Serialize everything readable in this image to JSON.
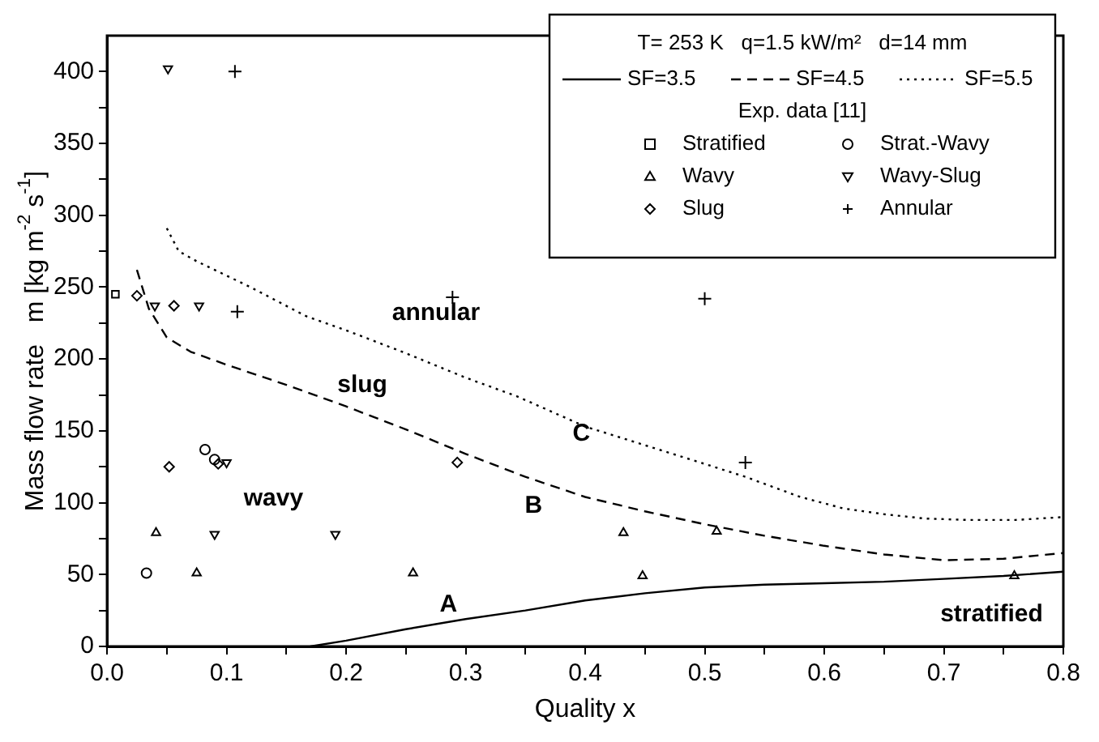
{
  "chart_data": {
    "type": "scatter",
    "xlabel": "Quality x",
    "ylabel": "Mass flow rate   m [kg m$^{-2}$ s$^{-1}$]",
    "legend_title": "T= 253 K   q=1.5 kW/m²   d=14 mm",
    "legend": "top right",
    "xlim": [
      0,
      0.8
    ],
    "ylim": [
      0,
      425
    ],
    "xticks": [
      {
        "value": 0,
        "label": "0.0"
      },
      {
        "value": 0.05,
        "label": null
      },
      {
        "value": 0.1,
        "label": "0.1"
      },
      {
        "value": 0.15,
        "label": null
      },
      {
        "value": 0.2,
        "label": "0.2"
      },
      {
        "value": 0.25,
        "label": null
      },
      {
        "value": 0.3,
        "label": "0.3"
      },
      {
        "value": 0.35,
        "label": null
      },
      {
        "value": 0.4,
        "label": "0.4"
      },
      {
        "value": 0.45,
        "label": null
      },
      {
        "value": 0.5,
        "label": "0.5"
      },
      {
        "value": 0.55,
        "label": null
      },
      {
        "value": 0.6,
        "label": "0.6"
      },
      {
        "value": 0.65,
        "label": null
      },
      {
        "value": 0.7,
        "label": "0.7"
      },
      {
        "value": 0.75,
        "label": null
      },
      {
        "value": 0.8,
        "label": "0.8"
      }
    ],
    "yticks": [
      0,
      {
        "value": 25,
        "label": null
      },
      50,
      {
        "value": 75,
        "label": null
      },
      100,
      {
        "value": 125,
        "label": null
      },
      150,
      {
        "value": 175,
        "label": null
      },
      200,
      {
        "value": 225,
        "label": null
      },
      250,
      {
        "value": 275,
        "label": null
      },
      300,
      {
        "value": 325,
        "label": null
      },
      350,
      {
        "value": 375,
        "label": null
      },
      400
    ],
    "annotations": [
      "Exp. data [11]",
      "annular",
      "slug",
      "wavy",
      "C",
      "B",
      "A",
      "stratified"
    ],
    "series": [
      {
        "name": "SF=3.5",
        "type": "line",
        "line_style": "solid",
        "color": "#000000",
        "x": [
          0.17,
          0.2,
          0.25,
          0.3,
          0.35,
          0.4,
          0.45,
          0.5,
          0.55,
          0.6,
          0.65,
          0.7,
          0.75,
          0.8
        ],
        "values": [
          0,
          4,
          12,
          19,
          25,
          32,
          37,
          41,
          43,
          44,
          45,
          47,
          49,
          52
        ]
      },
      {
        "name": "SF=4.5",
        "type": "line",
        "line_style": "dashed",
        "color": "#000000",
        "x": [
          0.025,
          0.035,
          0.05,
          0.07,
          0.1,
          0.15,
          0.2,
          0.25,
          0.3,
          0.35,
          0.4,
          0.45,
          0.5,
          0.55,
          0.6,
          0.65,
          0.7,
          0.75,
          0.8
        ],
        "values": [
          262,
          235,
          215,
          205,
          196,
          182,
          167,
          151,
          134,
          118,
          104,
          94,
          85,
          77,
          70,
          64,
          60,
          61,
          65
        ]
      },
      {
        "name": "SF=5.5",
        "type": "line",
        "line_style": "dotted",
        "color": "#000000",
        "x": [
          0.05,
          0.06,
          0.075,
          0.09,
          0.12,
          0.166,
          0.2,
          0.25,
          0.3,
          0.343,
          0.4,
          0.45,
          0.5,
          0.534,
          0.58,
          0.616,
          0.65,
          0.684,
          0.72,
          0.76,
          0.8
        ],
        "values": [
          291,
          275,
          268,
          262,
          250,
          230,
          220,
          204,
          187,
          174,
          153,
          140,
          127,
          118,
          104,
          96,
          92,
          89,
          88,
          88,
          90
        ]
      },
      {
        "name": "Stratified",
        "marker": "square",
        "color": "#000000",
        "x": [
          0.007
        ],
        "values": [
          245
        ]
      },
      {
        "name": "Strat.-Wavy",
        "marker": "circle",
        "color": "#000000",
        "x": [
          0.033,
          0.082,
          0.09
        ],
        "values": [
          51,
          137,
          130
        ]
      },
      {
        "name": "Wavy",
        "marker": "triangle",
        "color": "#000000",
        "x": [
          0.041,
          0.075,
          0.256,
          0.432,
          0.448,
          0.51,
          0.759
        ],
        "values": [
          79,
          51,
          51,
          79,
          49,
          80,
          49
        ]
      },
      {
        "name": "Wavy-Slug",
        "marker": "triangle-down",
        "color": "#000000",
        "x": [
          0.051,
          0.04,
          0.077,
          0.1,
          0.09,
          0.191
        ],
        "values": [
          402,
          237,
          237,
          128,
          78,
          78
        ]
      },
      {
        "name": "Slug",
        "marker": "diamond",
        "color": "#000000",
        "x": [
          0.025,
          0.056,
          0.052,
          0.093,
          0.293
        ],
        "values": [
          244,
          237,
          125,
          127,
          128
        ]
      },
      {
        "name": "Annular",
        "marker": "cross",
        "color": "#000000",
        "x": [
          0.107,
          0.109,
          0.289,
          0.5,
          0.534
        ],
        "values": [
          400,
          233,
          243,
          242,
          128
        ]
      }
    ]
  }
}
